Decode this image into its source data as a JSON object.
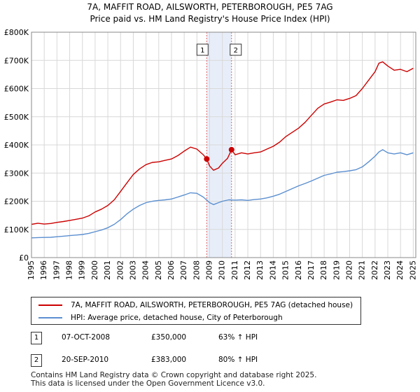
{
  "chart_data": {
    "type": "line",
    "title": "7A, MAFFIT ROAD, AILSWORTH, PETERBOROUGH, PE5 7AG",
    "subtitle": "Price paid vs. HM Land Registry's House Price Index (HPI)",
    "xlabel": "",
    "ylabel": "",
    "xlim": [
      1995,
      2025.2
    ],
    "ylim": [
      0,
      800000
    ],
    "grid": true,
    "x_ticks": [
      1995,
      1996,
      1997,
      1998,
      1999,
      2000,
      2001,
      2002,
      2003,
      2004,
      2005,
      2006,
      2007,
      2008,
      2009,
      2010,
      2011,
      2012,
      2013,
      2014,
      2015,
      2016,
      2017,
      2018,
      2019,
      2020,
      2021,
      2022,
      2023,
      2024,
      2025
    ],
    "y_ticks": [
      0,
      100000,
      200000,
      300000,
      400000,
      500000,
      600000,
      700000,
      800000
    ],
    "y_tick_labels": [
      "£0",
      "£100K",
      "£200K",
      "£300K",
      "£400K",
      "£500K",
      "£600K",
      "£700K",
      "£800K"
    ],
    "highlight_band": {
      "start": 2008.77,
      "end": 2010.72,
      "color": "#e8eef9"
    },
    "series": [
      {
        "name": "7A, MAFFIT ROAD, AILSWORTH, PETERBOROUGH, PE5 7AG (detached house)",
        "color": "#cc0000",
        "x": [
          1995,
          1995.5,
          1996,
          1996.5,
          1997,
          1997.5,
          1998,
          1998.5,
          1999,
          1999.5,
          2000,
          2000.5,
          2001,
          2001.5,
          2002,
          2002.5,
          2003,
          2003.5,
          2004,
          2004.5,
          2005,
          2005.5,
          2006,
          2006.5,
          2007,
          2007.5,
          2008,
          2008.5,
          2008.77,
          2009,
          2009.3,
          2009.7,
          2010,
          2010.4,
          2010.72,
          2011,
          2011.5,
          2012,
          2012.5,
          2013,
          2013.5,
          2014,
          2014.5,
          2015,
          2015.5,
          2016,
          2016.5,
          2017,
          2017.5,
          2018,
          2018.5,
          2019,
          2019.5,
          2020,
          2020.5,
          2021,
          2021.5,
          2022,
          2022.3,
          2022.6,
          2023,
          2023.5,
          2024,
          2024.5,
          2025
        ],
        "values": [
          118000,
          122000,
          119000,
          121000,
          125000,
          128000,
          132000,
          136000,
          140000,
          148000,
          162000,
          172000,
          185000,
          205000,
          235000,
          265000,
          295000,
          315000,
          330000,
          338000,
          340000,
          345000,
          350000,
          362000,
          378000,
          392000,
          385000,
          365000,
          350000,
          325000,
          310000,
          318000,
          335000,
          352000,
          383000,
          365000,
          372000,
          368000,
          372000,
          375000,
          385000,
          395000,
          410000,
          430000,
          445000,
          460000,
          480000,
          505000,
          530000,
          545000,
          552000,
          560000,
          558000,
          565000,
          575000,
          600000,
          630000,
          660000,
          690000,
          695000,
          680000,
          665000,
          668000,
          660000,
          672000
        ]
      },
      {
        "name": "HPI: Average price, detached house, City of Peterborough",
        "color": "#5b8fd0",
        "x": [
          1995,
          1995.5,
          1996,
          1996.5,
          1997,
          1997.5,
          1998,
          1998.5,
          1999,
          1999.5,
          2000,
          2000.5,
          2001,
          2001.5,
          2002,
          2002.5,
          2003,
          2003.5,
          2004,
          2004.5,
          2005,
          2005.5,
          2006,
          2006.5,
          2007,
          2007.5,
          2008,
          2008.5,
          2009,
          2009.3,
          2009.7,
          2010,
          2010.5,
          2011,
          2011.5,
          2012,
          2012.5,
          2013,
          2013.5,
          2014,
          2014.5,
          2015,
          2015.5,
          2016,
          2016.5,
          2017,
          2017.5,
          2018,
          2018.5,
          2019,
          2019.5,
          2020,
          2020.5,
          2021,
          2021.5,
          2022,
          2022.3,
          2022.6,
          2023,
          2023.5,
          2024,
          2024.5,
          2025
        ],
        "values": [
          70000,
          71000,
          71500,
          72000,
          74000,
          76000,
          78000,
          80000,
          82000,
          86000,
          92000,
          98000,
          106000,
          118000,
          135000,
          155000,
          172000,
          185000,
          195000,
          200000,
          203000,
          205000,
          208000,
          215000,
          222000,
          230000,
          228000,
          215000,
          195000,
          188000,
          195000,
          200000,
          205000,
          204000,
          205000,
          203000,
          206000,
          208000,
          212000,
          218000,
          225000,
          235000,
          245000,
          255000,
          263000,
          272000,
          282000,
          292000,
          297000,
          303000,
          305000,
          308000,
          312000,
          322000,
          340000,
          360000,
          375000,
          383000,
          372000,
          368000,
          372000,
          365000,
          372000
        ]
      }
    ],
    "markers": [
      {
        "label": "1",
        "x": 2008.77,
        "y": 350000
      },
      {
        "label": "2",
        "x": 2010.72,
        "y": 383000
      }
    ]
  },
  "legend": {
    "property_label": "7A, MAFFIT ROAD, AILSWORTH, PETERBOROUGH, PE5 7AG (detached house)",
    "hpi_label": "HPI: Average price, detached house, City of Peterborough"
  },
  "sales": [
    {
      "num": "1",
      "date": "07-OCT-2008",
      "price": "£350,000",
      "hpi": "63% ↑ HPI"
    },
    {
      "num": "2",
      "date": "20-SEP-2010",
      "price": "£383,000",
      "hpi": "80% ↑ HPI"
    }
  ],
  "footer": {
    "line1": "Contains HM Land Registry data © Crown copyright and database right 2025.",
    "line2": "This data is licensed under the Open Government Licence v3.0."
  }
}
